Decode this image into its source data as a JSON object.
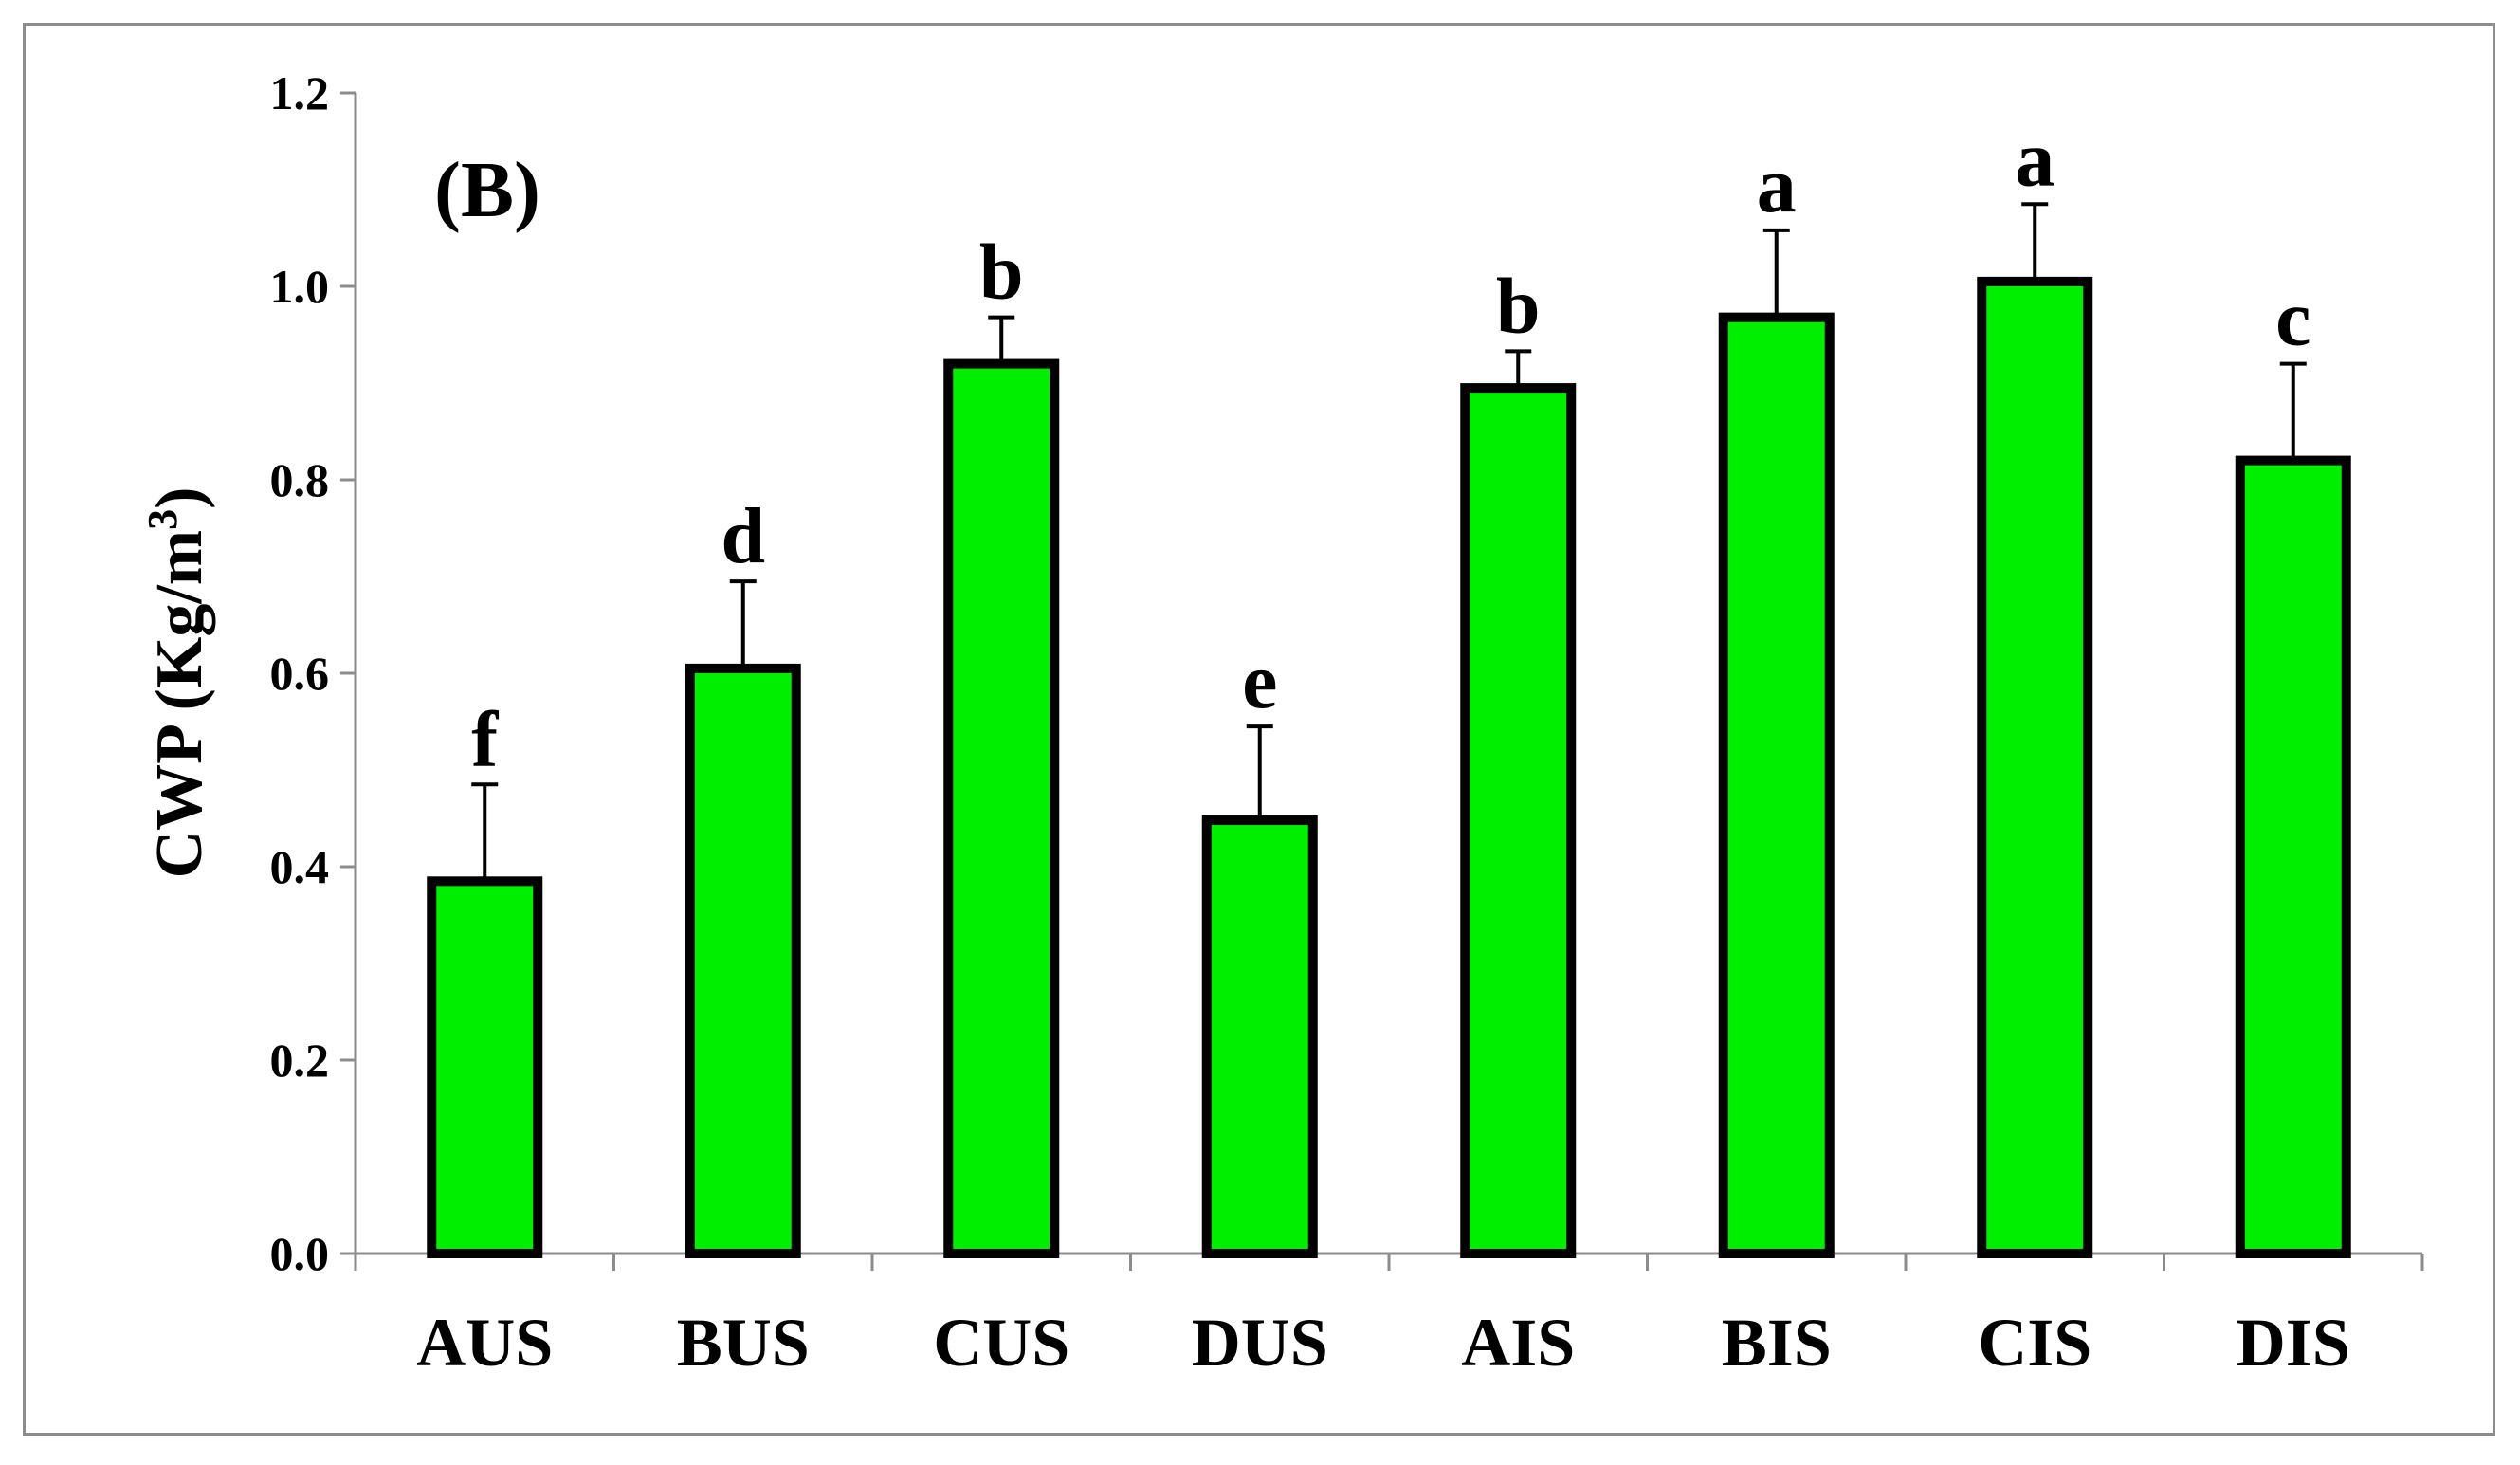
{
  "chart_data": {
    "type": "bar",
    "panel_label": "(B)",
    "ylabel_main": "CWP (Kg/m",
    "ylabel_sup": "3",
    "ylabel_close": ")",
    "xlabel": "",
    "ylim": [
      0,
      1.2
    ],
    "yticks": [
      0.0,
      0.2,
      0.4,
      0.6,
      0.8,
      1.0,
      1.2
    ],
    "ytick_labels": [
      "0.0",
      "0.2",
      "0.4",
      "0.6",
      "0.8",
      "1.0",
      "1.2"
    ],
    "categories": [
      "AUS",
      "BUS",
      "CUS",
      "DUS",
      "AIS",
      "BIS",
      "CIS",
      "DIS"
    ],
    "values": [
      0.385,
      0.605,
      0.92,
      0.448,
      0.895,
      0.968,
      1.005,
      0.82
    ],
    "errors": [
      0.1,
      0.09,
      0.048,
      0.097,
      0.038,
      0.09,
      0.08,
      0.1
    ],
    "significance": [
      "f",
      "d",
      "b",
      "e",
      "b",
      "a",
      "a",
      "c"
    ],
    "bar_color": "#00ee00",
    "bar_edge_color": "#000000",
    "grid": false,
    "legend": "none"
  }
}
